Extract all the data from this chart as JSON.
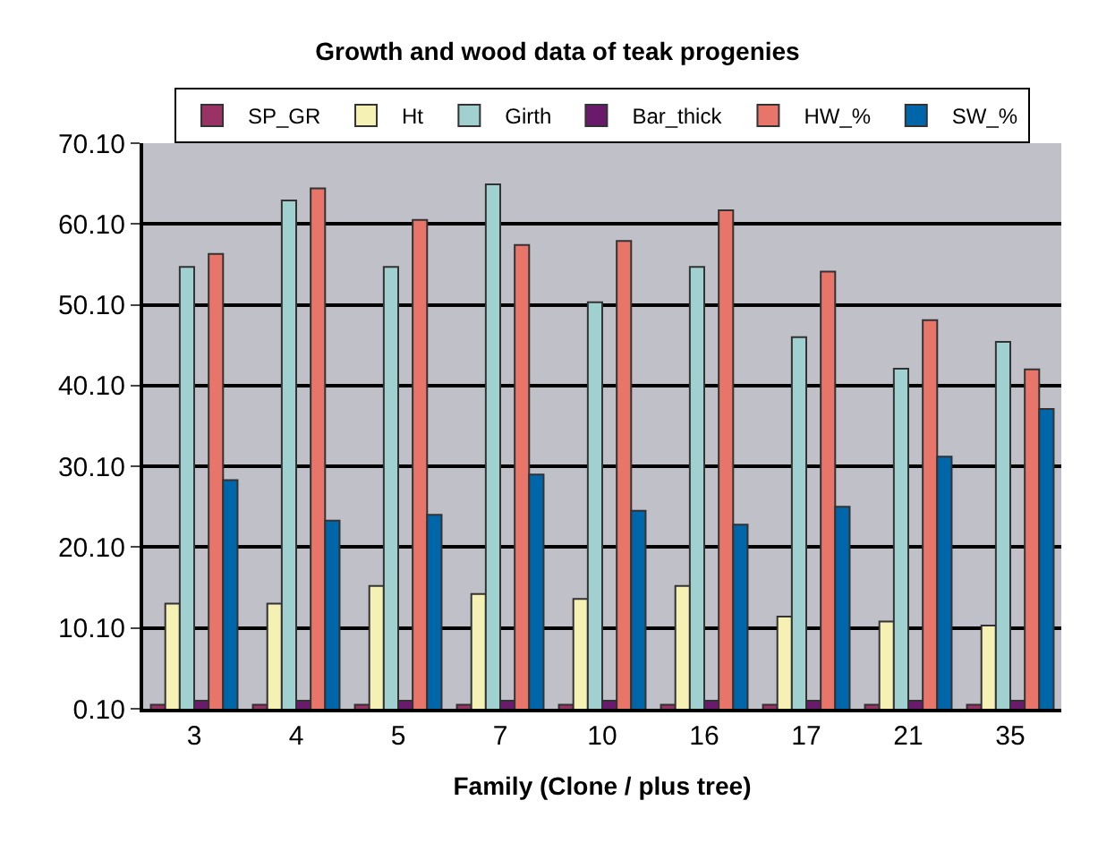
{
  "chart_data": {
    "type": "bar",
    "title": "Growth and wood data of teak progenies",
    "xlabel": "Family (Clone / plus tree)",
    "categories": [
      "3",
      "4",
      "5",
      "7",
      "10",
      "16",
      "17",
      "21",
      "35"
    ],
    "series": [
      {
        "name": "SP_GR",
        "color": "#993366",
        "values": [
          0.6,
          0.6,
          0.6,
          0.6,
          0.6,
          0.6,
          0.6,
          0.6,
          0.6
        ]
      },
      {
        "name": "Ht",
        "color": "#f5f0b4",
        "values": [
          13.1,
          13.1,
          15.3,
          14.3,
          13.7,
          15.3,
          11.5,
          10.9,
          10.4
        ]
      },
      {
        "name": "Girth",
        "color": "#a0d0d0",
        "values": [
          54.8,
          63.0,
          54.8,
          65.0,
          50.4,
          54.8,
          46.1,
          42.2,
          45.5
        ]
      },
      {
        "name": "Bar_thick",
        "color": "#6a1a6a",
        "values": [
          1.1,
          1.1,
          1.1,
          1.1,
          1.1,
          1.1,
          1.1,
          1.1,
          1.1
        ]
      },
      {
        "name": "HW_%",
        "color": "#e8756a",
        "values": [
          56.4,
          64.5,
          60.6,
          57.5,
          58.0,
          61.8,
          54.2,
          48.2,
          42.1
        ]
      },
      {
        "name": "SW_%",
        "color": "#0066aa",
        "values": [
          28.4,
          23.4,
          24.1,
          29.1,
          24.6,
          22.9,
          25.1,
          31.3,
          37.2
        ]
      }
    ],
    "ylim": [
      0.1,
      70.1
    ],
    "yticks": [
      {
        "value": 0.1,
        "label": "0.10"
      },
      {
        "value": 10.1,
        "label": "10.10"
      },
      {
        "value": 20.1,
        "label": "20.10"
      },
      {
        "value": 30.1,
        "label": "30.10"
      },
      {
        "value": 40.1,
        "label": "40.10"
      },
      {
        "value": 50.1,
        "label": "50.10"
      },
      {
        "value": 60.1,
        "label": "60.10"
      },
      {
        "value": 70.1,
        "label": "70.10"
      }
    ],
    "grid": "y",
    "legend": "top"
  }
}
